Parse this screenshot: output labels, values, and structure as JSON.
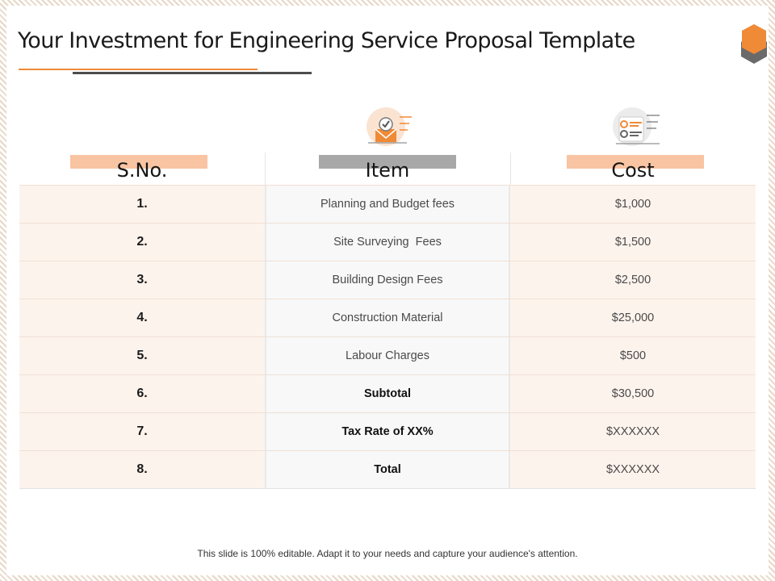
{
  "title": "Your Investment for Engineering Service Proposal Template",
  "colors": {
    "accent_orange": "#ef8a37",
    "light_peach": "#f9c4a2",
    "row_tint": "#fdf3ed",
    "gray_bar": "#a8a8a8"
  },
  "icons": {
    "logo": "hexagon-icon",
    "item": "envelope-check-icon",
    "cost": "checklist-icon"
  },
  "table": {
    "headers": {
      "sno": "S.No.",
      "item": "Item",
      "cost": "Cost"
    },
    "rows": [
      {
        "sno": "1.",
        "item": "Planning and Budget fees",
        "cost": "$1,000",
        "bold": false
      },
      {
        "sno": "2.",
        "item": "Site Surveying  Fees",
        "cost": "$1,500",
        "bold": false
      },
      {
        "sno": "3.",
        "item": "Building Design Fees",
        "cost": "$2,500",
        "bold": false
      },
      {
        "sno": "4.",
        "item": "Construction Material",
        "cost": "$25,000",
        "bold": false
      },
      {
        "sno": "5.",
        "item": "Labour Charges",
        "cost": "$500",
        "bold": false
      },
      {
        "sno": "6.",
        "item": "Subtotal",
        "cost": "$30,500",
        "bold": true
      },
      {
        "sno": "7.",
        "item": "Tax Rate of XX%",
        "cost": "$XXXXXX",
        "bold": true
      },
      {
        "sno": "8.",
        "item": "Total",
        "cost": "$XXXXXX",
        "bold": true
      }
    ]
  },
  "footer": "This slide is 100% editable. Adapt it to your needs and capture your audience's attention."
}
